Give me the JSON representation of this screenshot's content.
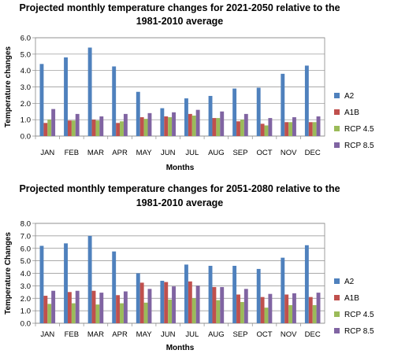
{
  "chart_data": [
    {
      "type": "bar",
      "title_lines": [
        "Projected monthly temperature changes for 2021-2050 relative to the",
        "1981-2010 average"
      ],
      "xlabel": "Months",
      "ylabel": "Temperature changes",
      "categories": [
        "JAN",
        "FEB",
        "MAR",
        "APR",
        "MAY",
        "JUN",
        "JUL",
        "AUG",
        "SEP",
        "OCT",
        "NOV",
        "DEC"
      ],
      "ylim": [
        0,
        6
      ],
      "yticks": [
        "0.0",
        "1.0",
        "2.0",
        "3.0",
        "4.0",
        "5.0",
        "6.0"
      ],
      "grid": true,
      "legend": "right",
      "series": [
        {
          "name": "A2",
          "color": "#4F81BD",
          "values": [
            4.4,
            4.8,
            5.4,
            4.25,
            2.7,
            1.7,
            2.3,
            2.45,
            2.9,
            2.95,
            3.8,
            4.3
          ]
        },
        {
          "name": "A1B",
          "color": "#C0504D",
          "values": [
            0.8,
            0.95,
            1.0,
            0.8,
            1.15,
            1.2,
            1.35,
            1.1,
            0.9,
            0.75,
            0.85,
            0.85
          ]
        },
        {
          "name": "RCP 4.5",
          "color": "#9BBB59",
          "values": [
            1.0,
            0.95,
            0.95,
            0.9,
            1.05,
            1.15,
            1.25,
            1.1,
            1.0,
            0.65,
            0.85,
            0.85
          ]
        },
        {
          "name": "RCP 8.5",
          "color": "#8064A2",
          "values": [
            1.65,
            1.35,
            1.2,
            1.35,
            1.4,
            1.45,
            1.6,
            1.5,
            1.35,
            1.1,
            1.15,
            1.2
          ]
        }
      ]
    },
    {
      "type": "bar",
      "title_lines": [
        "Projected monthly temperature changes for 2051-2080 relative to the",
        "1981-2010 average"
      ],
      "xlabel": "Months",
      "ylabel": "Temperature Changes",
      "categories": [
        "JAN",
        "FEB",
        "MAR",
        "APR",
        "MAY",
        "JUN",
        "JUL",
        "AUG",
        "SEP",
        "OCT",
        "NOV",
        "DEC"
      ],
      "ylim": [
        0,
        8
      ],
      "yticks": [
        "0.0",
        "1.0",
        "2.0",
        "3.0",
        "4.0",
        "5.0",
        "6.0",
        "7.0",
        "8.0"
      ],
      "grid": true,
      "legend": "right",
      "series": [
        {
          "name": "A2",
          "color": "#4F81BD",
          "values": [
            6.2,
            6.4,
            7.0,
            5.75,
            4.0,
            3.4,
            4.7,
            4.6,
            4.6,
            4.35,
            5.25,
            6.25
          ]
        },
        {
          "name": "A1B",
          "color": "#C0504D",
          "values": [
            2.2,
            2.5,
            2.6,
            2.25,
            3.25,
            3.3,
            3.35,
            2.9,
            2.3,
            2.1,
            2.3,
            2.1
          ]
        },
        {
          "name": "RCP 4.5",
          "color": "#9BBB59",
          "values": [
            1.55,
            1.6,
            1.5,
            1.6,
            1.65,
            1.9,
            2.0,
            1.85,
            1.7,
            1.25,
            1.45,
            1.45
          ]
        },
        {
          "name": "RCP 8.5",
          "color": "#8064A2",
          "values": [
            2.6,
            2.6,
            2.45,
            2.55,
            2.75,
            2.95,
            3.0,
            2.9,
            2.75,
            2.35,
            2.4,
            2.45
          ]
        }
      ]
    }
  ]
}
